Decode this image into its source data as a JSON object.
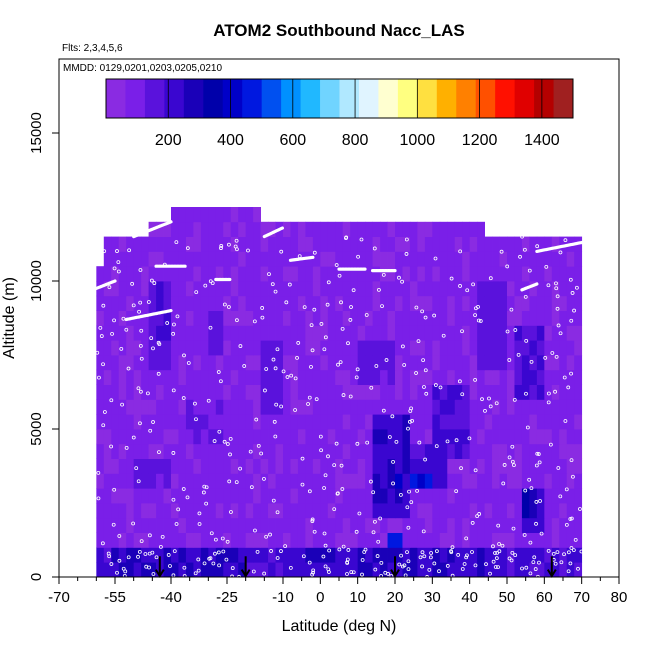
{
  "chart_data": {
    "type": "heatmap",
    "title": "ATOM2 Southbound Nacc_LAS",
    "flights_note": "Flts: 2,3,4,5,6",
    "dates_note": "MMDD: 0129,0201,0203,0205,0210",
    "xlabel": "Latitude (deg N)",
    "ylabel": "Altitude (m)",
    "xlim": [
      -70,
      80
    ],
    "ylim": [
      0,
      17500
    ],
    "x_ticks": [
      -70,
      -55,
      -40,
      -25,
      -10,
      0,
      10,
      20,
      30,
      40,
      50,
      60,
      70,
      80
    ],
    "x_tick_labels": [
      "-70",
      "-55",
      "-40",
      "-25",
      "-10",
      "0",
      "10",
      "20",
      "30",
      "40",
      "50",
      "60",
      "70",
      "80"
    ],
    "x_minor_ticks": [
      -65,
      -60,
      -50,
      -45,
      -35,
      -30,
      -20,
      -15,
      -5,
      5,
      15,
      25,
      35,
      45,
      55,
      65,
      75
    ],
    "y_ticks": [
      0,
      5000,
      10000,
      15000
    ],
    "y_tick_labels": [
      "0",
      "5000",
      "10000",
      "15000"
    ],
    "colorbar": {
      "range": [
        0,
        1500
      ],
      "ticks": [
        200,
        400,
        600,
        800,
        1000,
        1200,
        1400
      ],
      "tick_labels": [
        "200",
        "400",
        "600",
        "800",
        "1000",
        "1200",
        "1400"
      ],
      "colors": [
        "#8a2be2",
        "#7a1fe8",
        "#5a12dc",
        "#3a06d0",
        "#1a00b8",
        "#0000aa",
        "#0000c8",
        "#0018e0",
        "#0050f0",
        "#0090ff",
        "#20b8ff",
        "#70d4ff",
        "#b0e8ff",
        "#e0f4ff",
        "#ffffd0",
        "#ffff80",
        "#ffe040",
        "#ffb000",
        "#ff8000",
        "#ff5000",
        "#ff1000",
        "#e00000",
        "#b40000",
        "#a02020"
      ]
    },
    "grid": false,
    "ground_site_arrows_latitude": [
      -43,
      -20,
      20,
      62
    ],
    "background_value": 80,
    "coverage": [
      {
        "alt": [
          0,
          1500
        ],
        "lat": [
          -60,
          70
        ]
      },
      {
        "alt": [
          1500,
          10500
        ],
        "lat": [
          -60,
          71
        ]
      },
      {
        "alt": [
          10500,
          11500
        ],
        "lat": [
          -58,
          71
        ]
      },
      {
        "alt": [
          11500,
          12200
        ],
        "lat": [
          -45,
          -5
        ]
      },
      {
        "alt": [
          11500,
          12000
        ],
        "lat": [
          -5,
          45
        ]
      },
      {
        "alt": [
          11500,
          12500
        ],
        "lat": [
          -40,
          -15
        ]
      }
    ],
    "features": [
      {
        "lat": [
          -60,
          70
        ],
        "alt": [
          0,
          1000
        ],
        "value": 210
      },
      {
        "lat": [
          -55,
          -20
        ],
        "alt": [
          0,
          800
        ],
        "value": 260
      },
      {
        "lat": [
          -5,
          45
        ],
        "alt": [
          0,
          800
        ],
        "value": 250
      },
      {
        "lat": [
          -45,
          -40
        ],
        "alt": [
          7000,
          10000
        ],
        "value": 180
      },
      {
        "lat": [
          -30,
          -25
        ],
        "alt": [
          7500,
          9000
        ],
        "value": 170
      },
      {
        "lat": [
          -15,
          -10
        ],
        "alt": [
          5500,
          8000
        ],
        "value": 160
      },
      {
        "lat": [
          15,
          25
        ],
        "alt": [
          2000,
          5500
        ],
        "value": 240
      },
      {
        "lat": [
          25,
          35
        ],
        "alt": [
          3000,
          4500
        ],
        "value": 200
      },
      {
        "lat": [
          30,
          40
        ],
        "alt": [
          4000,
          6500
        ],
        "value": 190
      },
      {
        "lat": [
          43,
          50
        ],
        "alt": [
          7000,
          10000
        ],
        "value": 160
      },
      {
        "lat": [
          53,
          60
        ],
        "alt": [
          6000,
          8500
        ],
        "value": 200
      },
      {
        "lat": [
          54,
          60
        ],
        "alt": [
          1500,
          3000
        ],
        "value": 230
      },
      {
        "lat": [
          -35,
          -25
        ],
        "alt": [
          4500,
          6000
        ],
        "value": 150
      },
      {
        "lat": [
          -50,
          -40
        ],
        "alt": [
          3000,
          4000
        ],
        "value": 150
      },
      {
        "lat": [
          10,
          20
        ],
        "alt": [
          6500,
          8000
        ],
        "value": 150
      },
      {
        "lat": [
          19,
          22
        ],
        "alt": [
          800,
          1400
        ],
        "value": 560
      },
      {
        "lat": [
          20,
          22
        ],
        "alt": [
          3000,
          3500
        ],
        "value": 480
      },
      {
        "lat": [
          24,
          30
        ],
        "alt": [
          3000,
          3400
        ],
        "value": 420
      },
      {
        "lat": [
          55,
          58
        ],
        "alt": [
          2000,
          3000
        ],
        "value": 320
      }
    ],
    "flight_tracks": [
      {
        "lat": [
          -65,
          -55
        ],
        "alt": [
          9500,
          10000
        ]
      },
      {
        "lat": [
          -52,
          -40
        ],
        "alt": [
          8700,
          9000
        ]
      },
      {
        "lat": [
          -50,
          -40
        ],
        "alt": [
          11500,
          12000
        ]
      },
      {
        "lat": [
          -44,
          -36
        ],
        "alt": [
          10500,
          10500
        ]
      },
      {
        "lat": [
          -28,
          -24
        ],
        "alt": [
          10050,
          10050
        ]
      },
      {
        "lat": [
          -15,
          -10
        ],
        "alt": [
          11500,
          11800
        ]
      },
      {
        "lat": [
          -8,
          -2
        ],
        "alt": [
          10700,
          10800
        ]
      },
      {
        "lat": [
          5,
          12
        ],
        "alt": [
          10400,
          10400
        ]
      },
      {
        "lat": [
          14,
          20
        ],
        "alt": [
          10350,
          10350
        ]
      },
      {
        "lat": [
          58,
          70
        ],
        "alt": [
          11000,
          11300
        ]
      },
      {
        "lat": [
          54,
          58
        ],
        "alt": [
          9700,
          9900
        ]
      }
    ]
  }
}
